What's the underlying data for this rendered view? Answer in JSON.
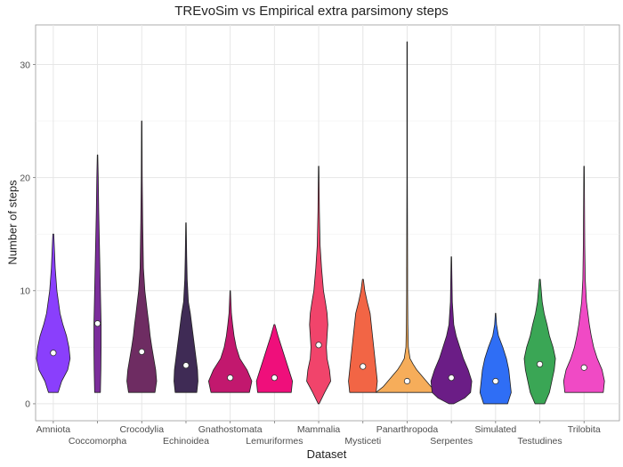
{
  "chart_data": {
    "type": "violin",
    "title": "TREvoSim vs Empirical extra parsimony steps",
    "xlabel": "Dataset",
    "ylabel": "Number of steps",
    "ylim": [
      -1.5,
      33.5
    ],
    "yticks": [
      0,
      10,
      20,
      30
    ],
    "grid": true,
    "legend": "none",
    "categories": [
      "Amniota",
      "Coccomorpha",
      "Crocodylia",
      "Echinoidea",
      "Gnathostomata",
      "Lemuriformes",
      "Mammalia",
      "Mysticeti",
      "Panarthropoda",
      "Serpentes",
      "Simulated",
      "Testudines",
      "Trilobita"
    ],
    "colors": [
      "#8a3ffc",
      "#7b2d9b",
      "#6e2c62",
      "#3f2b55",
      "#c2186e",
      "#ef0f7b",
      "#f1446b",
      "#f26545",
      "#f6ad5a",
      "#6b1d86",
      "#2f6ef5",
      "#3aa655",
      "#f04ac5"
    ],
    "violins": [
      {
        "name": "Amniota",
        "min": 1,
        "max": 15,
        "mean": 4.5,
        "profile": [
          [
            1,
            0.2
          ],
          [
            2,
            0.35
          ],
          [
            3,
            0.6
          ],
          [
            4,
            0.7
          ],
          [
            5,
            0.65
          ],
          [
            6,
            0.55
          ],
          [
            7,
            0.4
          ],
          [
            8,
            0.28
          ],
          [
            10,
            0.15
          ],
          [
            12,
            0.08
          ],
          [
            15,
            0.02
          ]
        ]
      },
      {
        "name": "Coccomorpha",
        "min": 1,
        "max": 22,
        "mean": 7.1,
        "profile": [
          [
            1,
            0.12
          ],
          [
            3,
            0.14
          ],
          [
            5,
            0.15
          ],
          [
            7,
            0.15
          ],
          [
            9,
            0.13
          ],
          [
            12,
            0.1
          ],
          [
            14,
            0.08
          ],
          [
            17,
            0.05
          ],
          [
            20,
            0.03
          ],
          [
            22,
            0.01
          ]
        ]
      },
      {
        "name": "Crocodylia",
        "min": 1,
        "max": 25,
        "mean": 4.6,
        "profile": [
          [
            1,
            0.55
          ],
          [
            2,
            0.62
          ],
          [
            3,
            0.58
          ],
          [
            4,
            0.5
          ],
          [
            5,
            0.42
          ],
          [
            6,
            0.35
          ],
          [
            7,
            0.3
          ],
          [
            8,
            0.24
          ],
          [
            10,
            0.13
          ],
          [
            12,
            0.07
          ],
          [
            16,
            0.04
          ],
          [
            20,
            0.02
          ],
          [
            25,
            0.01
          ]
        ]
      },
      {
        "name": "Echinoidea",
        "min": 1,
        "max": 16,
        "mean": 3.4,
        "profile": [
          [
            1,
            0.45
          ],
          [
            2,
            0.5
          ],
          [
            3,
            0.48
          ],
          [
            4,
            0.42
          ],
          [
            5,
            0.36
          ],
          [
            6,
            0.3
          ],
          [
            7,
            0.24
          ],
          [
            8,
            0.18
          ],
          [
            9,
            0.1
          ],
          [
            11,
            0.05
          ],
          [
            13,
            0.03
          ],
          [
            16,
            0.01
          ]
        ]
      },
      {
        "name": "Gnathostomata",
        "min": 1,
        "max": 10,
        "mean": 2.3,
        "profile": [
          [
            1,
            0.8
          ],
          [
            2,
            0.9
          ],
          [
            3,
            0.7
          ],
          [
            4,
            0.4
          ],
          [
            5,
            0.25
          ],
          [
            6,
            0.16
          ],
          [
            7,
            0.1
          ],
          [
            8,
            0.05
          ],
          [
            10,
            0.01
          ]
        ]
      },
      {
        "name": "Lemuriformes",
        "min": 1,
        "max": 7,
        "mean": 2.3,
        "profile": [
          [
            1,
            0.7
          ],
          [
            2,
            0.75
          ],
          [
            3,
            0.6
          ],
          [
            4,
            0.45
          ],
          [
            5,
            0.3
          ],
          [
            6,
            0.15
          ],
          [
            7,
            0.02
          ]
        ]
      },
      {
        "name": "Mammalia",
        "min": 0,
        "max": 21,
        "mean": 5.2,
        "profile": [
          [
            0,
            0.02
          ],
          [
            1,
            0.25
          ],
          [
            2,
            0.5
          ],
          [
            3,
            0.45
          ],
          [
            4,
            0.35
          ],
          [
            5,
            0.32
          ],
          [
            6,
            0.35
          ],
          [
            7,
            0.38
          ],
          [
            8,
            0.35
          ],
          [
            9,
            0.28
          ],
          [
            10,
            0.2
          ],
          [
            12,
            0.12
          ],
          [
            14,
            0.06
          ],
          [
            17,
            0.03
          ],
          [
            21,
            0.01
          ]
        ]
      },
      {
        "name": "Mysticeti",
        "min": 1,
        "max": 11,
        "mean": 3.3,
        "profile": [
          [
            1,
            0.55
          ],
          [
            2,
            0.6
          ],
          [
            3,
            0.55
          ],
          [
            4,
            0.5
          ],
          [
            5,
            0.45
          ],
          [
            6,
            0.4
          ],
          [
            7,
            0.35
          ],
          [
            8,
            0.3
          ],
          [
            9,
            0.18
          ],
          [
            10,
            0.08
          ],
          [
            11,
            0.02
          ]
        ]
      },
      {
        "name": "Panarthropoda",
        "min": 1,
        "max": 32,
        "mean": 2.0,
        "profile": [
          [
            1,
            1.3
          ],
          [
            1.5,
            1.0
          ],
          [
            2,
            0.8
          ],
          [
            2.5,
            0.6
          ],
          [
            3,
            0.4
          ],
          [
            3.5,
            0.25
          ],
          [
            4,
            0.12
          ],
          [
            5,
            0.05
          ],
          [
            7,
            0.03
          ],
          [
            10,
            0.02
          ],
          [
            12,
            0.02
          ],
          [
            20,
            0.01
          ],
          [
            32,
            0.01
          ]
        ]
      },
      {
        "name": "Serpentes",
        "min": 0,
        "max": 13,
        "mean": 2.3,
        "profile": [
          [
            0,
            0.1
          ],
          [
            0.5,
            0.55
          ],
          [
            1,
            0.8
          ],
          [
            2,
            0.85
          ],
          [
            3,
            0.7
          ],
          [
            4,
            0.5
          ],
          [
            5,
            0.35
          ],
          [
            6,
            0.2
          ],
          [
            7,
            0.1
          ],
          [
            9,
            0.04
          ],
          [
            13,
            0.01
          ]
        ]
      },
      {
        "name": "Simulated",
        "min": 0,
        "max": 8,
        "mean": 2.0,
        "profile": [
          [
            0,
            0.5
          ],
          [
            1,
            0.65
          ],
          [
            2,
            0.6
          ],
          [
            3,
            0.55
          ],
          [
            4,
            0.45
          ],
          [
            5,
            0.3
          ],
          [
            6,
            0.12
          ],
          [
            7,
            0.04
          ],
          [
            8,
            0.01
          ]
        ]
      },
      {
        "name": "Testudines",
        "min": 0,
        "max": 11,
        "mean": 3.5,
        "profile": [
          [
            0,
            0.2
          ],
          [
            1,
            0.4
          ],
          [
            2,
            0.5
          ],
          [
            3,
            0.6
          ],
          [
            4,
            0.65
          ],
          [
            5,
            0.55
          ],
          [
            6,
            0.4
          ],
          [
            7,
            0.3
          ],
          [
            8,
            0.18
          ],
          [
            9,
            0.1
          ],
          [
            11,
            0.02
          ]
        ]
      },
      {
        "name": "Trilobita",
        "min": 1,
        "max": 21,
        "mean": 3.2,
        "profile": [
          [
            1,
            0.8
          ],
          [
            2,
            0.85
          ],
          [
            3,
            0.75
          ],
          [
            4,
            0.55
          ],
          [
            5,
            0.4
          ],
          [
            6,
            0.3
          ],
          [
            7,
            0.22
          ],
          [
            9,
            0.1
          ],
          [
            11,
            0.05
          ],
          [
            14,
            0.03
          ],
          [
            21,
            0.01
          ]
        ]
      }
    ]
  }
}
